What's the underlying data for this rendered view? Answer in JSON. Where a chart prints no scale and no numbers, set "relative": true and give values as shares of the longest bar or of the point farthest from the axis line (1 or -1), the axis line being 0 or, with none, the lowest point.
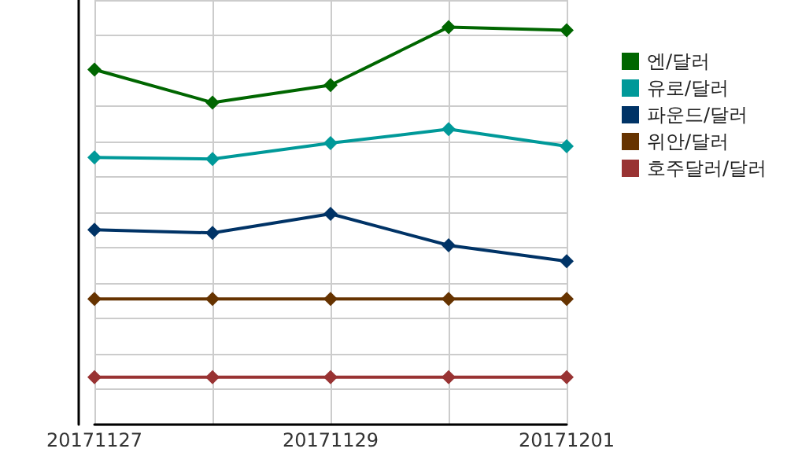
{
  "chart_data": {
    "type": "line",
    "relative": true,
    "categories": [
      "20171127",
      null,
      "20171129",
      null,
      "20171201"
    ],
    "series": [
      {
        "name": "엔/달러",
        "color": "#006600",
        "values": [
          0.893,
          0.81,
          0.854,
          1,
          0.992
        ]
      },
      {
        "name": "유로/달러",
        "color": "#009999",
        "values": [
          0.672,
          0.668,
          0.708,
          0.743,
          0.7
        ]
      },
      {
        "name": "파운드/달러",
        "color": "#003366",
        "values": [
          0.49,
          0.482,
          0.53,
          0.451,
          0.411
        ]
      },
      {
        "name": "위안/달러",
        "color": "#663300",
        "values": [
          0.316,
          0.316,
          0.316,
          0.316,
          0.316
        ]
      },
      {
        "name": "호주달러/달러",
        "color": "#993333",
        "values": [
          0.119,
          0.119,
          0.119,
          0.119,
          0.119
        ]
      }
    ],
    "grid": true,
    "legend": "top right",
    "marker": "diamond",
    "line_style": "solid"
  }
}
